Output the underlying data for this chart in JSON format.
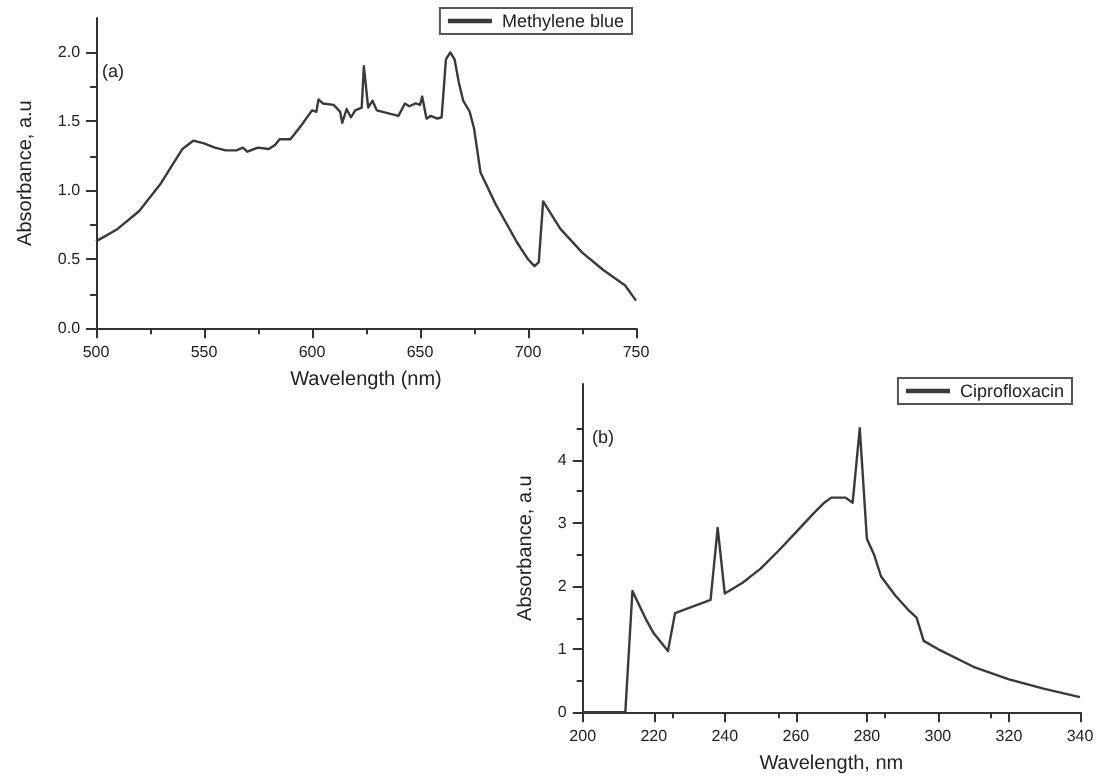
{
  "chart_data": [
    {
      "type": "line",
      "xlabel": "Wavelength (nm)",
      "ylabel": "Absorbance, a.u",
      "annotations": [
        "(a)"
      ],
      "legend": "top right",
      "grid": false,
      "marker": "none",
      "xlim": [
        500,
        750
      ],
      "xticks": [
        500,
        550,
        600,
        650,
        700,
        750
      ],
      "ylim": [
        0,
        2.25
      ],
      "yticks": [
        {
          "value": 0,
          "label": "0.0"
        },
        0.5,
        {
          "value": 1,
          "label": "1.0"
        },
        1.5,
        {
          "value": 2,
          "label": "2.0"
        }
      ],
      "series": [
        {
          "name": "Methylene blue",
          "color": "#3a3a3a",
          "x": [
            500,
            510,
            520,
            530,
            540,
            545,
            550,
            555,
            560,
            565,
            568,
            570,
            575,
            580,
            583,
            585,
            590,
            595,
            600,
            602,
            603,
            605,
            610,
            613,
            614,
            616,
            618,
            620,
            623,
            624,
            626,
            628,
            630,
            640,
            643,
            645,
            648,
            650,
            651,
            653,
            655,
            658,
            660,
            662,
            664,
            666,
            668,
            670,
            673,
            675,
            678,
            685,
            695,
            700,
            703,
            705,
            707,
            715,
            725,
            735,
            745,
            750
          ],
          "values": [
            0.63,
            0.72,
            0.85,
            1.05,
            1.3,
            1.36,
            1.34,
            1.31,
            1.29,
            1.29,
            1.31,
            1.28,
            1.31,
            1.3,
            1.33,
            1.37,
            1.37,
            1.47,
            1.58,
            1.57,
            1.66,
            1.63,
            1.62,
            1.57,
            1.49,
            1.59,
            1.53,
            1.58,
            1.6,
            1.9,
            1.6,
            1.65,
            1.58,
            1.54,
            1.63,
            1.61,
            1.63,
            1.62,
            1.68,
            1.52,
            1.54,
            1.52,
            1.53,
            1.95,
            2.0,
            1.95,
            1.78,
            1.65,
            1.57,
            1.45,
            1.13,
            0.9,
            0.62,
            0.5,
            0.45,
            0.48,
            0.92,
            0.72,
            0.55,
            0.42,
            0.31,
            0.2
          ]
        }
      ]
    },
    {
      "type": "line",
      "xlabel": "Wavelength, nm",
      "ylabel": "Absorbance, a.u",
      "annotations": [
        "(b)"
      ],
      "legend": "top right",
      "grid": false,
      "marker": "none",
      "xlim": [
        200,
        340
      ],
      "xticks": [
        200,
        220,
        240,
        260,
        280,
        300,
        320,
        340
      ],
      "ylim": [
        0,
        5.2
      ],
      "yticks": [
        0,
        1,
        2,
        3,
        4
      ],
      "series": [
        {
          "name": "Ciprofloxacin",
          "color": "#3a3a3a",
          "x": [
            200,
            212,
            214,
            218,
            220,
            224,
            226,
            236,
            238,
            240,
            245,
            250,
            255,
            260,
            265,
            268,
            270,
            274,
            276,
            278,
            280,
            282,
            284,
            288,
            292,
            294,
            296,
            300,
            310,
            320,
            330,
            340
          ],
          "values": [
            0,
            0,
            1.92,
            1.45,
            1.25,
            0.97,
            1.57,
            1.78,
            2.92,
            1.88,
            2.05,
            2.27,
            2.55,
            2.85,
            3.15,
            3.32,
            3.4,
            3.4,
            3.32,
            4.5,
            2.75,
            2.5,
            2.15,
            1.85,
            1.6,
            1.5,
            1.13,
            1.0,
            0.72,
            0.52,
            0.37,
            0.24
          ]
        }
      ]
    }
  ]
}
